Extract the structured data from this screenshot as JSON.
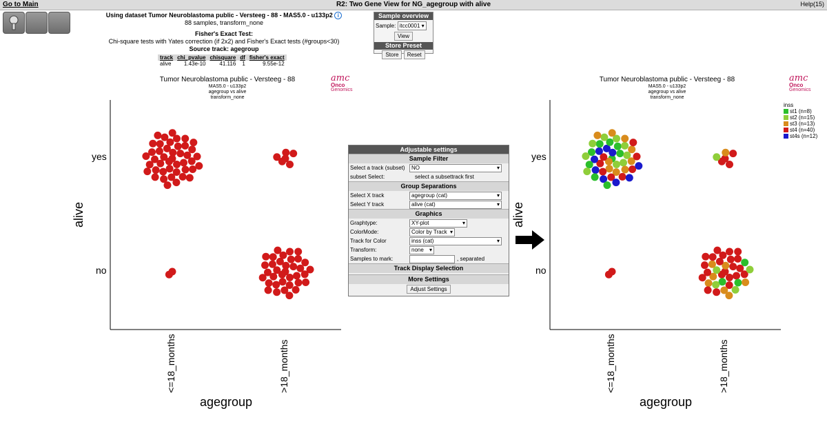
{
  "header": {
    "go_main": "Go to Main",
    "title": "R2: Two Gene View for NG_agegroup with alive",
    "help": "Help(15)"
  },
  "dataset": {
    "line1": "Using dataset Tumor Neuroblastoma public - Versteeg - 88 - MAS5.0 - u133p2",
    "line2": "88 samples, transform_none",
    "info_icon": "i",
    "test_title": "Fisher's Exact Test:",
    "test_desc": "Chi-square tests with Yates correction (if 2x2) and Fisher's Exact tests (#groups<30)",
    "source_track": "Source track: agegroup"
  },
  "stats_table": {
    "headers": [
      "track",
      "chi_pvalue",
      "chisquare",
      "df",
      "fisher's exact"
    ],
    "row": [
      "alive",
      "1.43e-10",
      "41.116",
      "1",
      "9.55e-12"
    ]
  },
  "sample_overview": {
    "title": "Sample overview",
    "sample_label": "Sample:",
    "sample_value": "itcc0001",
    "view_btn": "View",
    "store_title": "Store Preset",
    "store_btn": "Store",
    "reset_btn": "Reset"
  },
  "settings": {
    "title": "Adjustable settings",
    "sample_filter": "Sample Filter",
    "select_track_subset": "Select a track (subset)",
    "select_track_subset_value": "NO",
    "subset_select": "subset Select:",
    "subset_select_value": "select a subsettrack first",
    "group_separations": "Group Separations",
    "select_x": "Select X track",
    "select_x_value": "agegroup (cat)",
    "select_y": "Select Y track",
    "select_y_value": "alive (cat)",
    "graphics": "Graphics",
    "graphtype": "Graphtype:",
    "graphtype_value": "XY-plot",
    "colormode": "ColorMode:",
    "colormode_value": "Color by Track",
    "track_color": "Track for Color",
    "track_color_value": "inss (cat)",
    "transform": "Transform:",
    "transform_value": "none",
    "samples_mark": "Samples to mark:",
    "separated": ", separated",
    "track_display": "Track Display Selection",
    "more_settings": "More Settings",
    "adjust_btn": "Adjust Settings"
  },
  "plot_left": {
    "title": "Tumor Neuroblastoma public - Versteeg - 88",
    "sub1": "MAS5.0 - u133p2",
    "sub2": "agegroup vs alive",
    "sub3": "transform_none"
  },
  "plot_right": {
    "title": "Tumor Neuroblastoma public - Versteeg - 88",
    "sub1": "MAS5.0 - u133p2",
    "sub2": "agegroup vs alive",
    "sub3": "transform_none"
  },
  "logo": {
    "l1": "amc",
    "l2": "Onco",
    "l3": "Genomics"
  },
  "axes": {
    "xlabel": "agegroup",
    "ylabel": "alive",
    "xticks": [
      "<=18_months",
      ">18_months"
    ],
    "yticks": [
      "yes",
      "no"
    ]
  },
  "legend": {
    "title": "inss",
    "items": [
      {
        "label": "st1 (n=8)",
        "color": "#2bbf2b"
      },
      {
        "label": "st2 (n=15)",
        "color": "#8fce3a"
      },
      {
        "label": "st3 (n=13)",
        "color": "#d98c1c"
      },
      {
        "label": "st4 (n=40)",
        "color": "#d11a1a"
      },
      {
        "label": "st4s (n=12)",
        "color": "#1a1acc"
      }
    ]
  },
  "chart_data": {
    "type": "scatter",
    "xlabel": "agegroup",
    "ylabel": "alive",
    "categories_x": [
      "<=18_months",
      ">18_months"
    ],
    "categories_y": [
      "yes",
      "no"
    ],
    "group_counts": [
      {
        "x": "<=18_months",
        "y": "yes",
        "n": 44
      },
      {
        "x": ">18_months",
        "y": "yes",
        "n": 6
      },
      {
        "x": "<=18_months",
        "y": "no",
        "n": 2
      },
      {
        "x": ">18_months",
        "y": "no",
        "n": 36
      }
    ],
    "color_left": "#d11a1a"
  }
}
